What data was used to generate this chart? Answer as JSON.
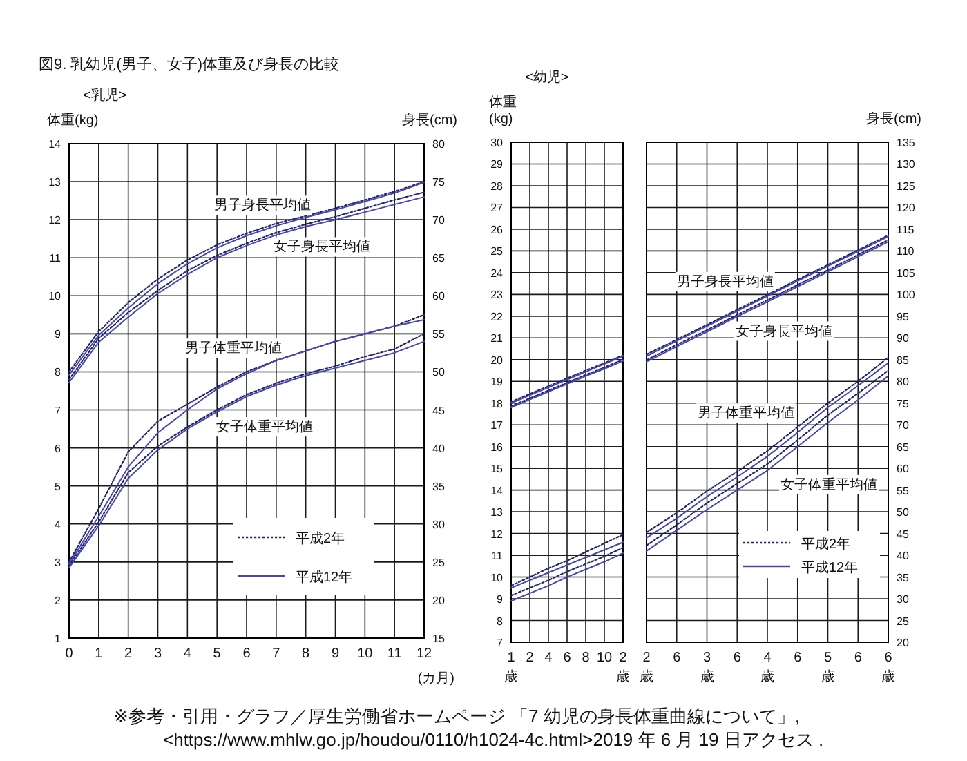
{
  "chart_data": [
    {
      "type": "line",
      "title": "図9. 乳幼児(男子、女子)体重及び身長の比較",
      "subtitle": "<乳児>",
      "ylabel": "体重(kg)",
      "y2label": "身長(cm)",
      "xlabel": "(カ月)",
      "x": [
        0,
        1,
        2,
        3,
        4,
        5,
        6,
        7,
        8,
        9,
        10,
        11,
        12
      ],
      "xlim": [
        0,
        12
      ],
      "xticks": [
        0,
        1,
        2,
        3,
        4,
        5,
        6,
        7,
        8,
        9,
        10,
        11,
        12
      ],
      "ylim": [
        1,
        14
      ],
      "yticks": [
        1,
        2,
        3,
        4,
        5,
        6,
        7,
        8,
        9,
        10,
        11,
        12,
        13,
        14
      ],
      "y2lim": [
        15,
        80
      ],
      "y2ticks": [
        15,
        20,
        25,
        30,
        35,
        40,
        45,
        50,
        55,
        60,
        65,
        70,
        75,
        80
      ],
      "grid": true,
      "legend": "bottom right",
      "marker": "none",
      "series": [
        {
          "name": "平成2年",
          "axis": "y2",
          "line_style": "dotted",
          "color": "#23236e",
          "values": [
            50.0,
            55.3,
            59.1,
            62.2,
            64.7,
            66.7,
            68.2,
            69.5,
            70.5,
            71.5,
            72.6,
            73.7,
            75.0
          ]
        },
        {
          "name": "平成12年",
          "axis": "y2",
          "line_style": "solid",
          "color": "#4646b4",
          "values": [
            49.6,
            54.8,
            58.4,
            61.6,
            64.2,
            66.3,
            67.9,
            69.2,
            70.3,
            71.3,
            72.4,
            73.5,
            74.9
          ]
        },
        {
          "axis": "y2",
          "line_style": "dotted",
          "color": "#23236e",
          "values": [
            49.0,
            54.4,
            57.8,
            60.7,
            63.3,
            65.3,
            66.9,
            68.3,
            69.4,
            70.4,
            71.5,
            72.6,
            73.6
          ]
        },
        {
          "axis": "y2",
          "line_style": "solid",
          "color": "#4646b4",
          "values": [
            48.6,
            53.9,
            57.2,
            60.3,
            62.8,
            65.0,
            66.6,
            68.0,
            69.1,
            70.0,
            71.0,
            72.0,
            73.0
          ]
        },
        {
          "line_style": "dotted",
          "color": "#23236e",
          "values": [
            3.0,
            4.4,
            5.9,
            6.7,
            7.15,
            7.6,
            8.0,
            8.3,
            8.55,
            8.8,
            9.0,
            9.2,
            9.5
          ]
        },
        {
          "line_style": "solid",
          "color": "#4646b4",
          "values": [
            2.95,
            4.2,
            5.5,
            6.4,
            7.0,
            7.55,
            7.95,
            8.3,
            8.55,
            8.8,
            9.0,
            9.2,
            9.37
          ]
        },
        {
          "line_style": "dotted",
          "color": "#23236e",
          "values": [
            2.9,
            4.05,
            5.35,
            6.05,
            6.55,
            7.0,
            7.4,
            7.7,
            7.95,
            8.15,
            8.4,
            8.6,
            9.0
          ]
        },
        {
          "line_style": "solid",
          "color": "#4646b4",
          "values": [
            2.85,
            3.95,
            5.2,
            5.95,
            6.5,
            6.95,
            7.35,
            7.65,
            7.9,
            8.1,
            8.3,
            8.5,
            8.8
          ]
        }
      ],
      "annotations": [
        "男子身長平均値",
        "女子身長平均値",
        "男子体重平均値",
        "女子体重平均値",
        "※参考・引用・グラフ／厚生労働省ホームページ 「7 幼児の身長体重曲線について」,\n<https://www.mhlw.go.jp/houdou/0110/h1024-4c.html>2019 年 6 月 19 日アクセス ."
      ]
    },
    {
      "type": "line",
      "subtitle": "<幼児>",
      "ylabel": "体重\n(kg)",
      "categories": [
        "1\n歳",
        "2",
        "4",
        "6",
        "8",
        "10",
        "2\n歳"
      ],
      "ylim": [
        7,
        30
      ],
      "yticks": [
        7,
        8,
        9,
        10,
        11,
        12,
        13,
        14,
        15,
        16,
        17,
        18,
        19,
        20,
        21,
        22,
        23,
        24,
        25,
        26,
        27,
        28,
        29,
        30
      ],
      "y2lim": [
        20,
        135
      ],
      "grid": true,
      "marker": "none",
      "series": [
        {
          "axis": "y2",
          "line_style": "dotted",
          "color": "#23236e",
          "values": [
            75.3,
            77.1,
            78.9,
            80.7,
            82.5,
            84.2,
            86.0
          ]
        },
        {
          "axis": "y2",
          "line_style": "solid",
          "color": "#4646b4",
          "values": [
            75.0,
            76.8,
            78.6,
            80.4,
            82.2,
            84.0,
            85.8
          ]
        },
        {
          "axis": "y2",
          "line_style": "dotted",
          "color": "#23236e",
          "values": [
            74.3,
            76.1,
            77.9,
            79.7,
            81.5,
            83.2,
            85.0
          ]
        },
        {
          "axis": "y2",
          "line_style": "solid",
          "color": "#4646b4",
          "values": [
            74.0,
            75.8,
            77.6,
            79.4,
            81.2,
            82.9,
            84.7
          ]
        },
        {
          "line_style": "dotted",
          "color": "#23236e",
          "values": [
            9.6,
            10.0,
            10.4,
            10.75,
            11.15,
            11.55,
            11.95
          ]
        },
        {
          "line_style": "solid",
          "color": "#4646b4",
          "values": [
            9.5,
            9.85,
            10.2,
            10.55,
            10.9,
            11.25,
            11.6
          ]
        },
        {
          "line_style": "dotted",
          "color": "#23236e",
          "values": [
            9.15,
            9.5,
            9.85,
            10.25,
            10.6,
            10.95,
            11.35
          ]
        },
        {
          "line_style": "solid",
          "color": "#4646b4",
          "values": [
            8.9,
            9.25,
            9.6,
            10.0,
            10.35,
            10.7,
            11.1
          ]
        }
      ]
    },
    {
      "type": "line",
      "y2label": "身長(cm)",
      "categories": [
        "2\n歳",
        "6",
        "3\n歳",
        "6",
        "4\n歳",
        "6",
        "5\n歳",
        "6",
        "6\n歳"
      ],
      "ylim": [
        7,
        30
      ],
      "y2lim": [
        20,
        135
      ],
      "y2ticks": [
        20,
        25,
        30,
        35,
        40,
        45,
        50,
        55,
        60,
        65,
        70,
        75,
        80,
        85,
        90,
        95,
        100,
        105,
        110,
        115,
        120,
        125,
        130,
        135
      ],
      "grid": true,
      "legend": "bottom right",
      "marker": "none",
      "series": [
        {
          "name": "平成2年",
          "axis": "y2",
          "line_style": "dotted",
          "color": "#23236e",
          "values": [
            86.2,
            89.6,
            93.0,
            96.5,
            99.9,
            103.4,
            106.8,
            110.2,
            113.6
          ]
        },
        {
          "name": "平成12年",
          "axis": "y2",
          "line_style": "solid",
          "color": "#4646b4",
          "values": [
            85.8,
            89.3,
            92.7,
            96.2,
            99.6,
            103.1,
            106.5,
            109.9,
            113.3
          ]
        },
        {
          "axis": "y2",
          "line_style": "dotted",
          "color": "#23236e",
          "values": [
            84.9,
            88.4,
            91.8,
            95.3,
            98.7,
            102.2,
            105.6,
            109.1,
            112.5
          ]
        },
        {
          "axis": "y2",
          "line_style": "solid",
          "color": "#4646b4",
          "values": [
            84.5,
            88.0,
            91.4,
            94.9,
            98.3,
            101.8,
            105.2,
            108.7,
            112.1
          ]
        },
        {
          "line_style": "dotted",
          "color": "#23236e",
          "values": [
            12.05,
            12.95,
            13.95,
            14.85,
            15.8,
            16.9,
            18.0,
            19.0,
            20.1
          ]
        },
        {
          "line_style": "solid",
          "color": "#4646b4",
          "values": [
            11.8,
            12.7,
            13.7,
            14.6,
            15.55,
            16.65,
            17.8,
            18.8,
            19.85
          ]
        },
        {
          "line_style": "dotted",
          "color": "#23236e",
          "values": [
            11.45,
            12.4,
            13.4,
            14.3,
            15.2,
            16.3,
            17.45,
            18.45,
            19.5
          ]
        },
        {
          "line_style": "solid",
          "color": "#4646b4",
          "values": [
            11.2,
            12.15,
            13.1,
            14.0,
            14.9,
            16.0,
            17.1,
            18.15,
            19.25
          ]
        }
      ],
      "annotations": [
        "男子身長平均値",
        "女子身長平均値",
        "男子体重平均値",
        "女子体重平均値"
      ]
    }
  ]
}
